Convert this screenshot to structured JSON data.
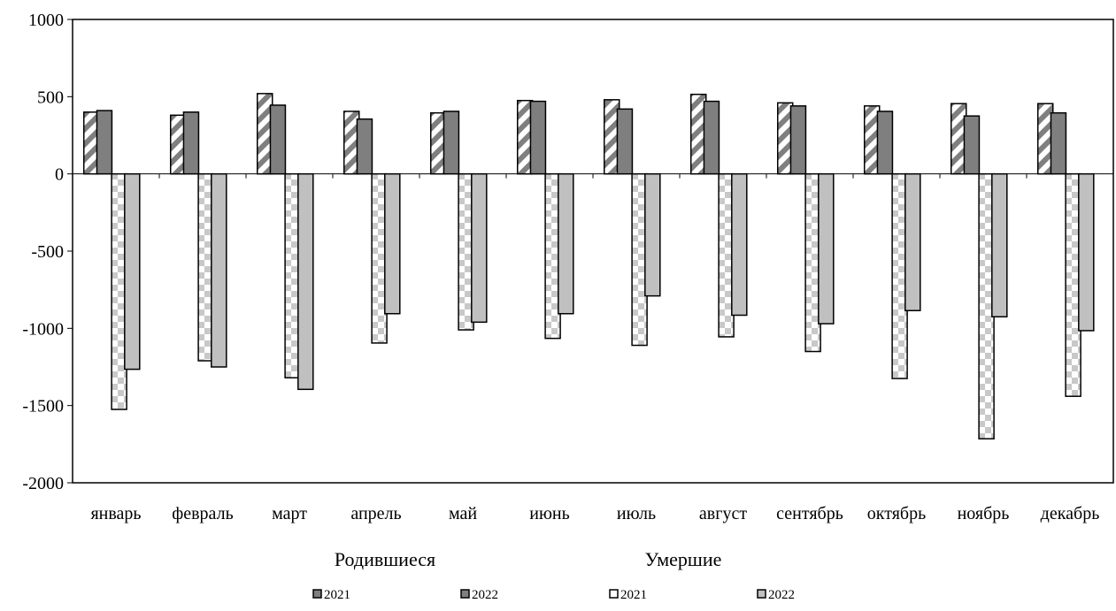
{
  "chart_data": {
    "type": "bar",
    "categories": [
      "январь",
      "февраль",
      "март",
      "апрель",
      "май",
      "июнь",
      "июль",
      "август",
      "сентябрь",
      "октябрь",
      "ноябрь",
      "декабрь"
    ],
    "series": [
      {
        "name": "2021",
        "group": "Родившиеся",
        "pattern": "diagonal-stripes",
        "color": "#7f7f7f",
        "values": [
          400,
          380,
          520,
          405,
          395,
          475,
          480,
          515,
          460,
          440,
          455,
          455
        ]
      },
      {
        "name": "2022",
        "group": "Родившиеся",
        "pattern": "solid",
        "color": "#7f7f7f",
        "values": [
          410,
          400,
          445,
          355,
          405,
          470,
          420,
          470,
          440,
          405,
          375,
          395
        ]
      },
      {
        "name": "2021",
        "group": "Умершие",
        "pattern": "checker",
        "color": "#c8c8c8",
        "values": [
          -1525,
          -1210,
          -1320,
          -1095,
          -1010,
          -1065,
          -1110,
          -1055,
          -1150,
          -1325,
          -1715,
          -1440
        ]
      },
      {
        "name": "2022",
        "group": "Умершие",
        "pattern": "solid",
        "color": "#c0c0c0",
        "values": [
          -1265,
          -1250,
          -1395,
          -905,
          -960,
          -905,
          -790,
          -915,
          -970,
          -885,
          -925,
          -1015
        ]
      }
    ],
    "ylim": [
      -2000,
      1000
    ],
    "yticks": [
      "1000",
      "500",
      "0",
      "-500",
      "-1000",
      "-1500",
      "-2000"
    ],
    "group_labels": [
      "Родившиеся",
      "Умершие"
    ],
    "legend": [
      "2021",
      "2022",
      "2021",
      "2022"
    ],
    "legend_position": "bottom",
    "grid": false
  }
}
